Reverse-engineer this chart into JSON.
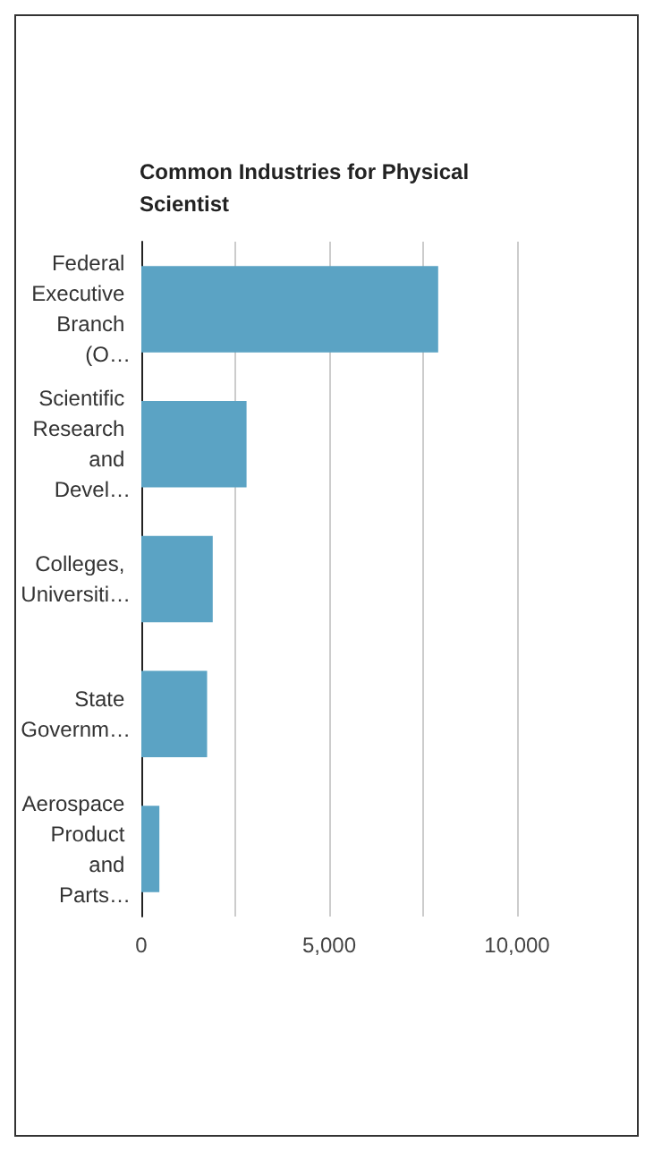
{
  "chart_data": {
    "type": "bar",
    "orientation": "horizontal",
    "title": "Common Industries for Physical Scientist",
    "categories": [
      "Federal Executive Branch (O…",
      "Scientific Research and Devel…",
      "Colleges, Universiti…",
      "State Governm…",
      "Aerospace Product and Parts…"
    ],
    "values": [
      7900,
      2800,
      1900,
      1750,
      480
    ],
    "color": "#5ba3c4",
    "xlim": [
      0,
      10000
    ],
    "xticks": [
      0,
      {
        "value": 2500,
        "label": null
      },
      {
        "value": 5000,
        "label": "5,000"
      },
      {
        "value": 7500,
        "label": null
      },
      {
        "value": 10000,
        "label": "10,000"
      }
    ],
    "grid": "x"
  }
}
